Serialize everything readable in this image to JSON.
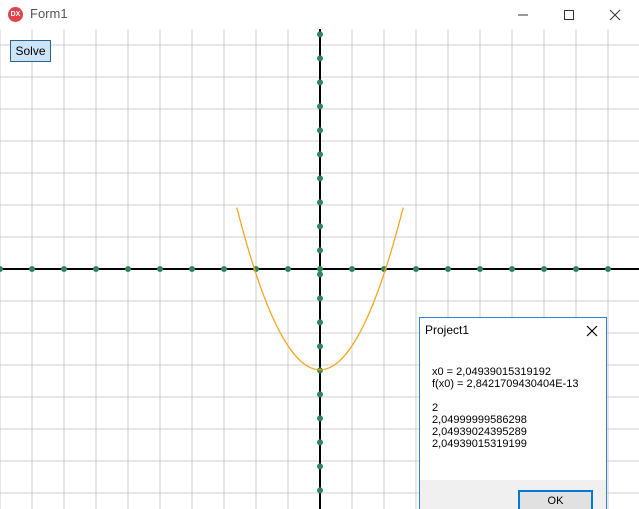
{
  "window": {
    "title": "Form1",
    "icon_text": "DX",
    "icon_color": "#e0434a"
  },
  "toolbar": {
    "solve_label": "Solve"
  },
  "chart_data": {
    "type": "line",
    "function": "f(x) = x^2 - 4.2",
    "grid": true,
    "grid_color": "#d0d0d0",
    "axis_color": "#000000",
    "tick_marker_color": "#2e8b57",
    "curve_color": "#f5a623",
    "series": [
      {
        "x": [
          -2.3,
          -2.0,
          -1.5,
          -1.0,
          -0.5,
          0.0,
          0.5,
          1.0,
          1.5,
          2.0,
          2.3
        ],
        "y": [
          1.09,
          -0.2,
          -1.95,
          -3.2,
          -3.95,
          -4.2,
          -3.95,
          -3.2,
          -1.95,
          -0.2,
          1.09
        ]
      }
    ],
    "roots_visible": [
      -2.0494,
      2.0494
    ]
  },
  "dialog": {
    "title": "Project1",
    "lines": [
      "x0 = 2,04939015319192",
      "f(x0) = 2,8421709430404E-13",
      "",
      "2",
      "2,04999999586298",
      "2,04939024395289",
      "2,04939015319199"
    ],
    "ok_label": "OK"
  }
}
